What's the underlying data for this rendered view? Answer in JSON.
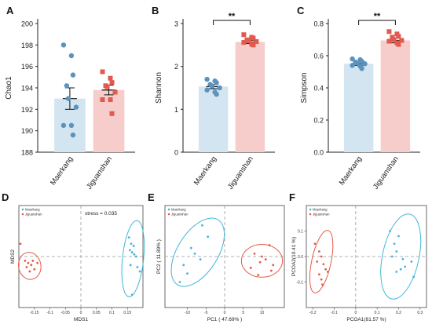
{
  "colors": {
    "blue": "#5b93bd",
    "blue_fill": "#d3e5f0",
    "red": "#e05a4f",
    "red_fill": "#f6cdcb",
    "ellipse_blue": "#41b6d8",
    "ellipse_red": "#e65a46",
    "axis": "#222222",
    "guide": "#999999"
  },
  "chart_data": [
    {
      "panel": "A",
      "type": "bar",
      "categories": [
        "Maerkang",
        "Jiguanshan"
      ],
      "ylabel": "Chao1",
      "ylim": [
        188,
        200
      ],
      "yticks": [
        188,
        190,
        192,
        194,
        196,
        198,
        200
      ],
      "means": [
        193.0,
        193.8
      ],
      "sem": [
        1.0,
        0.45
      ],
      "points": [
        [
          198.0,
          197.0,
          195.2,
          194.2,
          193.0,
          192.2,
          190.5,
          190.5,
          189.6
        ],
        [
          195.5,
          194.9,
          194.5,
          194.2,
          194.1,
          193.6,
          192.9,
          192.9,
          191.6
        ]
      ],
      "significance": ""
    },
    {
      "panel": "B",
      "type": "bar",
      "categories": [
        "Maerkang",
        "Jiguanshan"
      ],
      "ylabel": "Shannon",
      "ylim": [
        0,
        3
      ],
      "yticks": [
        0,
        1,
        2,
        3
      ],
      "means": [
        1.53,
        2.57
      ],
      "sem": [
        0.05,
        0.035
      ],
      "points": [
        [
          1.7,
          1.66,
          1.62,
          1.58,
          1.55,
          1.5,
          1.45,
          1.4,
          1.35
        ],
        [
          2.74,
          2.68,
          2.66,
          2.62,
          2.6,
          2.58,
          2.56,
          2.52,
          2.5
        ]
      ],
      "significance": "**"
    },
    {
      "panel": "C",
      "type": "bar",
      "categories": [
        "Maerkang",
        "Jiguanshan"
      ],
      "ylabel": "Simpson",
      "ylim": [
        0,
        0.8
      ],
      "yticks": [
        0.0,
        0.2,
        0.4,
        0.6,
        0.8
      ],
      "yticklabels": [
        "0.0",
        "0.2",
        "0.4",
        "0.6",
        "0.8"
      ],
      "means": [
        0.55,
        0.695
      ],
      "sem": [
        0.01,
        0.015
      ],
      "points": [
        [
          0.58,
          0.575,
          0.565,
          0.56,
          0.555,
          0.55,
          0.54,
          0.535,
          0.52
        ],
        [
          0.75,
          0.735,
          0.72,
          0.715,
          0.7,
          0.695,
          0.69,
          0.68,
          0.67
        ]
      ],
      "significance": "**"
    },
    {
      "panel": "D",
      "type": "scatter",
      "xlabel": "MDS1",
      "ylabel": "MDS2",
      "stress": "stress = 0.035",
      "xlim": [
        -0.2,
        0.2
      ],
      "ylim": [
        -0.12,
        0.12
      ],
      "xticks": [
        -0.15,
        -0.1,
        -0.05,
        0,
        0.05,
        0.1,
        0.15
      ],
      "xticklabels": [
        "-0.15",
        "-0.1",
        "-0.05",
        "0",
        "0.05",
        "0.1",
        "0.15"
      ],
      "yticks": [],
      "yticklabels": [],
      "legend": [
        "Maerkang",
        "Jiguanshan"
      ],
      "series": [
        {
          "name": "Maerkang",
          "x": [
            0.155,
            0.162,
            0.17,
            0.158,
            0.165,
            0.172,
            0.178,
            0.16,
            0.182,
            0.19,
            0.165
          ],
          "y": [
            0.045,
            0.03,
            0.025,
            0.015,
            0.01,
            0.005,
            0.0,
            -0.02,
            -0.025,
            -0.035,
            -0.09
          ]
        },
        {
          "name": "Jiguanshan",
          "x": [
            -0.195,
            -0.18,
            -0.17,
            -0.16,
            -0.175,
            -0.15,
            -0.165,
            -0.155,
            -0.14
          ],
          "y": [
            0.03,
            -0.01,
            -0.015,
            -0.02,
            -0.025,
            -0.03,
            -0.035,
            -0.01,
            -0.015
          ]
        }
      ],
      "ellipses": [
        {
          "cx": 0.168,
          "cy": -0.005,
          "rx": 0.034,
          "ry": 0.09,
          "rot": 6
        },
        {
          "cx": -0.165,
          "cy": -0.022,
          "rx": 0.036,
          "ry": 0.032,
          "rot": -10
        }
      ]
    },
    {
      "panel": "E",
      "type": "scatter",
      "xlabel": "PC1 ( 47.69% )",
      "ylabel": "PC2 ( 11.89% )",
      "xlim": [
        -16,
        16
      ],
      "ylim": [
        -18,
        18
      ],
      "xticks": [
        -10,
        -5,
        0,
        5,
        10
      ],
      "xticklabels": [
        "-10",
        "-5",
        "0",
        "5",
        "10"
      ],
      "yticks": [],
      "yticklabels": [],
      "legend": [
        "Maerkang",
        "Jiguanshan"
      ],
      "series": [
        {
          "name": "Maerkang",
          "x": [
            -6,
            -4.5,
            -9,
            -8,
            -6.5,
            -11,
            -10,
            -12
          ],
          "y": [
            11,
            7,
            3,
            1,
            -1,
            -3,
            -6,
            -9
          ]
        },
        {
          "name": "Jiguanshan",
          "x": [
            12,
            8,
            10,
            11,
            9.5,
            7,
            12.5,
            9,
            13
          ],
          "y": [
            4,
            1,
            0,
            -1,
            -2,
            -4,
            -5,
            -6.5,
            -3
          ]
        }
      ],
      "ellipses": [
        {
          "cx": -7.2,
          "cy": 1.5,
          "rx": 5.4,
          "ry": 13.5,
          "rot": 32
        },
        {
          "cx": 10,
          "cy": -1.5,
          "rx": 5.5,
          "ry": 5.8,
          "rot": 0
        }
      ]
    },
    {
      "panel": "F",
      "type": "scatter",
      "xlabel": "PCOA1(81.57 %)",
      "ylabel": "PCOA2(10.41 %)",
      "xlim": [
        -0.23,
        0.33
      ],
      "ylim": [
        -0.2,
        0.2
      ],
      "xticks": [
        -0.2,
        -0.1,
        0,
        0.1,
        0.2,
        0.3
      ],
      "xticklabels": [
        "-0.2",
        "-0.1",
        "0",
        "0.1",
        "0.2",
        "0.3"
      ],
      "yticks": [
        -0.1,
        0.0,
        0.1
      ],
      "yticklabels": [
        "-0.1",
        "0.0",
        "0.1"
      ],
      "legend": [
        "Maerkang",
        "Jiguanshan"
      ],
      "series": [
        {
          "name": "Maerkang",
          "x": [
            0.16,
            0.2,
            0.18,
            0.19,
            0.17,
            0.22,
            0.26,
            0.23,
            0.21,
            0.19,
            0.27
          ],
          "y": [
            0.1,
            0.08,
            0.05,
            0.02,
            0.0,
            -0.01,
            -0.02,
            -0.04,
            -0.05,
            -0.06,
            -0.08
          ]
        },
        {
          "name": "Jiguanshan",
          "x": [
            -0.19,
            -0.17,
            -0.16,
            -0.18,
            -0.15,
            -0.14,
            -0.13,
            -0.17,
            -0.16,
            -0.155
          ],
          "y": [
            0.05,
            0.02,
            0.0,
            -0.02,
            -0.03,
            -0.05,
            -0.06,
            -0.07,
            -0.09,
            -0.11
          ]
        }
      ],
      "ellipses": [
        {
          "cx": 0.21,
          "cy": 0.0,
          "rx": 0.085,
          "ry": 0.17,
          "rot": 12
        },
        {
          "cx": -0.16,
          "cy": -0.02,
          "rx": 0.045,
          "ry": 0.125,
          "rot": 12
        }
      ]
    }
  ]
}
